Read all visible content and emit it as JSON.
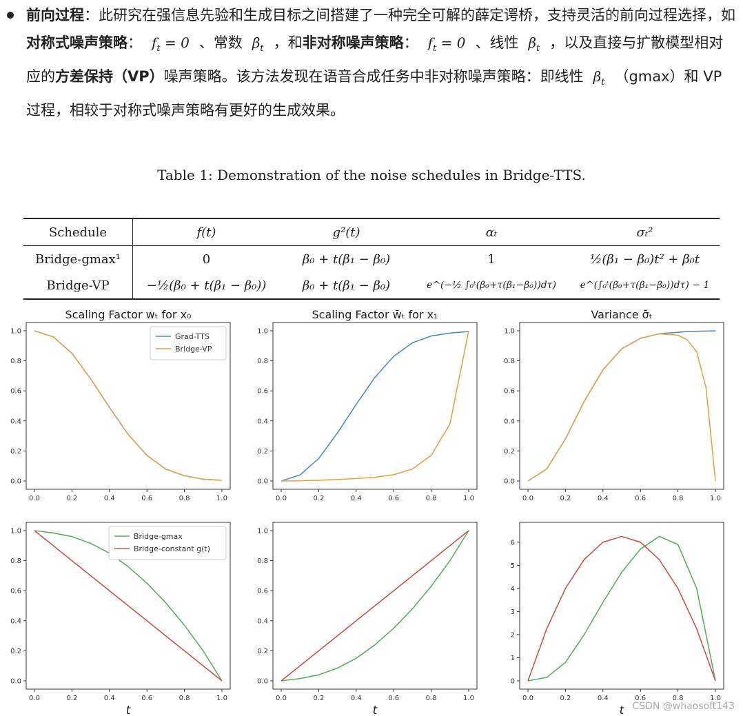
{
  "intro": {
    "lead_bold": "前向过程",
    "t1": "：此研究在强信息先验和生成目标之间搭建了一种完全可解的薛定谔桥，支持灵活的前向过程选择，如",
    "b_sym": "对称式噪声策略",
    "t2": "：",
    "m1": "f",
    "m1sub": "t",
    "m1rest": " = 0",
    "t3": "、常数",
    "m2": "β",
    "m2sub": "t",
    "t4": "，和",
    "b_asym": "非对称噪声策略",
    "t5": "：",
    "t6": "、线性",
    "t7": "，以及直接与扩散模型相对应的",
    "b_vp": "方差保持（VP）",
    "t8": "噪声策略。该方法发现在语音合成任务中非对称噪声策略：即线性",
    "t9": "（gmax）和 VP 过程，相较于对称式噪声策略有更好的生成效果。"
  },
  "table": {
    "caption": "Table 1: Demonstration of the noise schedules in Bridge-TTS.",
    "headers": [
      "Schedule",
      "f(t)",
      "g²(t)",
      "αₜ",
      "σₜ²"
    ],
    "rows": [
      [
        "Bridge-gmax¹",
        "0",
        "β₀ + t(β₁ − β₀)",
        "1",
        "½(β₁ − β₀)t² + β₀t"
      ],
      [
        "Bridge-VP",
        "−½(β₀ + t(β₁ − β₀))",
        "β₀ + t(β₁ − β₀)",
        "e^(−½ ∫₀ᵗ(β₀+τ(β₁−β₀))dτ)",
        "e^(∫₀ᵗ(β₀+τ(β₁−β₀))dτ) − 1"
      ]
    ]
  },
  "colors": {
    "blue": "#4c8fbd",
    "orange": "#e7a34a",
    "green": "#5aae61",
    "red": "#c9534f"
  },
  "chart_data": [
    {
      "type": "line",
      "title": "Scaling Factor wₜ for x₀",
      "xlim": [
        0,
        1
      ],
      "ylim": [
        0,
        1
      ],
      "xticks": [
        "0.0",
        "0.2",
        "0.4",
        "0.6",
        "0.8",
        "1.0"
      ],
      "yticks": [
        "0.0",
        "0.2",
        "0.4",
        "0.6",
        "0.8",
        "1.0"
      ],
      "x": [
        0,
        0.1,
        0.2,
        0.3,
        0.4,
        0.5,
        0.6,
        0.7,
        0.8,
        0.9,
        1.0
      ],
      "series": [
        {
          "name": "Grad-TTS",
          "color": "blue",
          "values": [
            1.0,
            0.96,
            0.85,
            0.68,
            0.49,
            0.31,
            0.17,
            0.08,
            0.035,
            0.012,
            0.005
          ]
        },
        {
          "name": "Bridge-VP",
          "color": "orange",
          "values": [
            1.0,
            0.96,
            0.85,
            0.68,
            0.49,
            0.31,
            0.17,
            0.08,
            0.035,
            0.012,
            0.005
          ]
        }
      ],
      "legend": "top-right",
      "xlabel": ""
    },
    {
      "type": "line",
      "title": "Scaling Factor w̄ₜ for x₁",
      "xlim": [
        0,
        1
      ],
      "ylim": [
        0,
        1
      ],
      "xticks": [
        "0.0",
        "0.2",
        "0.4",
        "0.6",
        "0.8",
        "1.0"
      ],
      "yticks": [
        "0.0",
        "0.2",
        "0.4",
        "0.6",
        "0.8",
        "1.0"
      ],
      "x": [
        0,
        0.1,
        0.2,
        0.3,
        0.4,
        0.5,
        0.6,
        0.7,
        0.8,
        0.9,
        1.0
      ],
      "series": [
        {
          "color": "blue",
          "values": [
            0.0,
            0.04,
            0.15,
            0.32,
            0.51,
            0.69,
            0.83,
            0.92,
            0.965,
            0.985,
            0.995
          ]
        },
        {
          "color": "orange",
          "values": [
            0.0,
            0.002,
            0.005,
            0.01,
            0.016,
            0.025,
            0.042,
            0.08,
            0.17,
            0.38,
            1.0
          ]
        }
      ],
      "xlabel": ""
    },
    {
      "type": "line",
      "title": "Variance σ̃ₜ",
      "xlim": [
        0,
        1
      ],
      "ylim": [
        0,
        1
      ],
      "xticks": [
        "0.0",
        "0.2",
        "0.4",
        "0.6",
        "0.8",
        "1.0"
      ],
      "yticks": [
        "0.0",
        "0.2",
        "0.4",
        "0.6",
        "0.8",
        "1.0"
      ],
      "x": [
        0,
        0.1,
        0.2,
        0.3,
        0.4,
        0.5,
        0.6,
        0.7,
        0.8,
        0.85,
        0.9,
        0.95,
        1.0
      ],
      "series": [
        {
          "color": "blue",
          "values": [
            0.0,
            0.08,
            0.28,
            0.53,
            0.74,
            0.88,
            0.95,
            0.98,
            0.99,
            0.995,
            0.997,
            0.998,
            0.999
          ]
        },
        {
          "color": "orange",
          "values": [
            0.0,
            0.08,
            0.28,
            0.53,
            0.74,
            0.88,
            0.95,
            0.98,
            0.97,
            0.94,
            0.86,
            0.62,
            0.0
          ]
        }
      ],
      "xlabel": ""
    },
    {
      "type": "line",
      "title": "",
      "xlim": [
        0,
        1
      ],
      "ylim": [
        0,
        1
      ],
      "xticks": [
        "0.0",
        "0.2",
        "0.4",
        "0.6",
        "0.8",
        "1.0"
      ],
      "yticks": [
        "0.0",
        "0.2",
        "0.4",
        "0.6",
        "0.8",
        "1.0"
      ],
      "x": [
        0,
        0.1,
        0.2,
        0.3,
        0.4,
        0.5,
        0.6,
        0.7,
        0.8,
        0.9,
        1.0
      ],
      "series": [
        {
          "name": "Bridge-gmax",
          "color": "green",
          "values": [
            1.0,
            0.985,
            0.96,
            0.915,
            0.85,
            0.76,
            0.65,
            0.52,
            0.37,
            0.2,
            0.0
          ]
        },
        {
          "name": "Bridge-constant g(t)",
          "color": "red",
          "values": [
            1.0,
            0.9,
            0.8,
            0.7,
            0.6,
            0.5,
            0.4,
            0.3,
            0.2,
            0.1,
            0.0
          ]
        }
      ],
      "legend": "top-right",
      "xlabel": "t"
    },
    {
      "type": "line",
      "title": "",
      "xlim": [
        0,
        1
      ],
      "ylim": [
        0,
        1
      ],
      "xticks": [
        "0.0",
        "0.2",
        "0.4",
        "0.6",
        "0.8",
        "1.0"
      ],
      "yticks": [
        "0.0",
        "0.2",
        "0.4",
        "0.6",
        "0.8",
        "1.0"
      ],
      "x": [
        0,
        0.1,
        0.2,
        0.3,
        0.4,
        0.5,
        0.6,
        0.7,
        0.8,
        0.9,
        1.0
      ],
      "series": [
        {
          "color": "green",
          "values": [
            0.0,
            0.015,
            0.04,
            0.085,
            0.15,
            0.24,
            0.35,
            0.48,
            0.63,
            0.8,
            1.0
          ]
        },
        {
          "color": "red",
          "values": [
            0.0,
            0.1,
            0.2,
            0.3,
            0.4,
            0.5,
            0.6,
            0.7,
            0.8,
            0.9,
            1.0
          ]
        }
      ],
      "xlabel": "t"
    },
    {
      "type": "line",
      "title": "",
      "xlim": [
        0,
        1
      ],
      "ylim": [
        0,
        6.5
      ],
      "xticks": [
        "0.0",
        "0.2",
        "0.4",
        "0.6",
        "0.8",
        "1.0"
      ],
      "yticks": [
        "0",
        "1",
        "2",
        "3",
        "4",
        "5",
        "6"
      ],
      "x": [
        0,
        0.1,
        0.2,
        0.3,
        0.4,
        0.5,
        0.6,
        0.7,
        0.8,
        0.9,
        1.0
      ],
      "series": [
        {
          "color": "green",
          "values": [
            0.0,
            0.15,
            0.8,
            2.0,
            3.4,
            4.7,
            5.7,
            6.25,
            5.9,
            4.0,
            0.0
          ]
        },
        {
          "color": "red",
          "values": [
            0.0,
            2.25,
            4.0,
            5.25,
            6.0,
            6.25,
            6.0,
            5.25,
            4.0,
            2.25,
            0.0
          ]
        }
      ],
      "xlabel": "t"
    }
  ],
  "watermark": "CSDN @whaosoft143"
}
